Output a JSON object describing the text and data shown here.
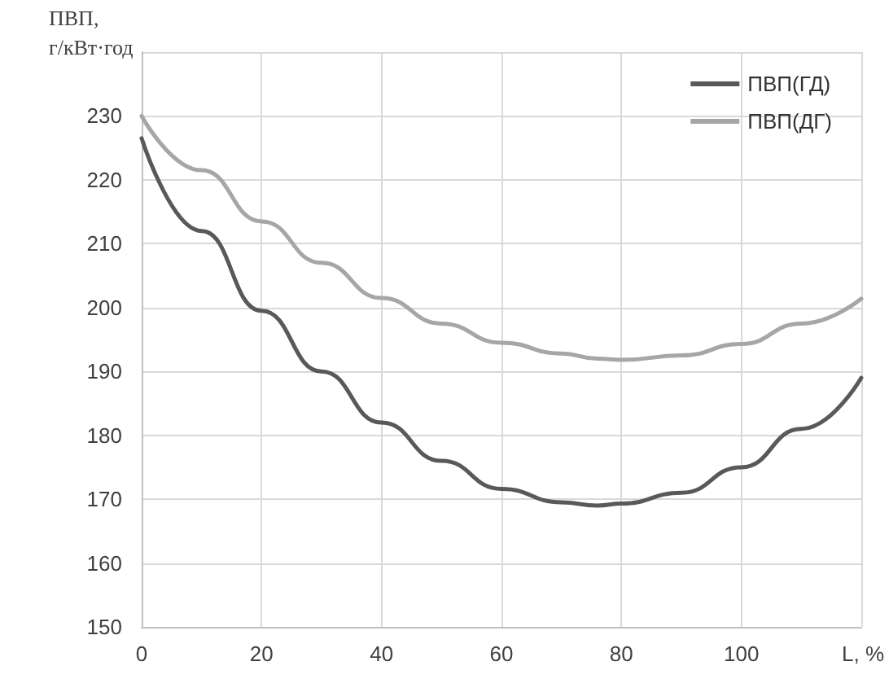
{
  "chart_data": {
    "type": "line",
    "ylabel": "ПВП,\nг/кВт·год",
    "xlabel": "L, %",
    "x": [
      0,
      10,
      20,
      30,
      40,
      50,
      60,
      70,
      76,
      80,
      90,
      100,
      110,
      120
    ],
    "series": [
      {
        "name": "ПВП(ГД)",
        "color": "#595959",
        "values": [
          226.5,
          212,
          199.5,
          190,
          182,
          176,
          171.6,
          169.5,
          169,
          169.3,
          171,
          175,
          181,
          189
        ]
      },
      {
        "name": "ПВП(ДГ)",
        "color": "#a6a6a6",
        "values": [
          230,
          221.5,
          213.5,
          207,
          201.5,
          197.5,
          194.5,
          192.8,
          192,
          191.8,
          192.5,
          194.3,
          197.5,
          201.4
        ]
      }
    ],
    "xlim": [
      0,
      120
    ],
    "xticks": [
      0,
      20,
      40,
      60,
      80,
      100,
      {
        "value": 120,
        "label": null
      }
    ],
    "ylim": [
      150,
      240
    ],
    "yticks": [
      150,
      160,
      170,
      180,
      190,
      200,
      210,
      220,
      230,
      {
        "value": 240,
        "label": null
      }
    ],
    "grid": true,
    "legend": "top right",
    "marker": "none",
    "line_style": "solid"
  }
}
